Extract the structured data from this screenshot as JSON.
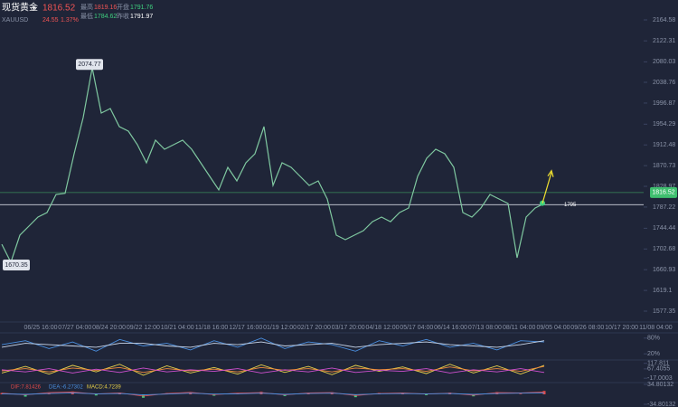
{
  "header": {
    "name": "现货黄金",
    "price": "1816.52",
    "symbol": "XAUUSD",
    "change": "24.55",
    "change_pct": "1.37%",
    "high_label": "最高",
    "high": "1819.16",
    "open_label": "开盘",
    "open": "1791.76",
    "low_label": "最低",
    "low": "1784.62",
    "prev_label": "昨收",
    "prev": "1791.97"
  },
  "chart_data": [
    {
      "type": "line",
      "color": "#7fc8a0",
      "ylim": [
        1577.35,
        2164.58
      ],
      "yticks": [
        2164.58,
        2122.31,
        2080.03,
        2038.76,
        1996.87,
        1954.29,
        1912.48,
        1870.73,
        1828.97,
        1787.22,
        1744.44,
        1702.68,
        1660.93,
        1619.1,
        1577.35
      ],
      "time_labels": [
        "06/25 16:00",
        "07/27 04:00",
        "08/24 20:00",
        "09/22 12:00",
        "10/21 04:00",
        "11/18 16:00",
        "12/17 16:00",
        "01/19 12:00",
        "02/17 20:00",
        "03/17 20:00",
        "04/18 12:00",
        "05/17 04:00",
        "06/14 16:00",
        "07/13 08:00",
        "08/11 04:00",
        "09/05 04:00",
        "09/26 08:00",
        "10/17 20:00",
        "11/08 04:00"
      ],
      "values": [
        1712.2,
        1675.8,
        1730.5,
        1748.7,
        1767.0,
        1776.1,
        1812.6,
        1815.0,
        1894.6,
        1967.6,
        2067.9,
        1976.7,
        1985.8,
        1949.4,
        1940.2,
        1912.9,
        1876.4,
        1922.0,
        1903.8,
        1912.9,
        1922.0,
        1903.8,
        1876.4,
        1849.0,
        1821.7,
        1867.3,
        1839.9,
        1876.4,
        1894.6,
        1949.4,
        1830.8,
        1876.4,
        1867.3,
        1849.0,
        1830.8,
        1839.9,
        1803.4,
        1730.5,
        1721.4,
        1730.5,
        1739.6,
        1757.8,
        1767.0,
        1757.8,
        1776.1,
        1785.2,
        1849.0,
        1885.5,
        1903.8,
        1894.6,
        1867.3,
        1776.1,
        1767.0,
        1785.2,
        1812.6,
        1803.4,
        1794.3,
        1684.9,
        1767.0,
        1785.2,
        1794.3
      ],
      "high_mark": 2074.77,
      "low_mark": 1670.35,
      "last": 1816.52,
      "prev_close": 1791.97,
      "marker": 1795
    },
    {
      "type": "oscillator",
      "ylim": [
        0,
        100
      ],
      "yticks": [
        {
          "value": 80,
          "label": "80%"
        },
        {
          "value": 20,
          "label": "20%"
        }
      ],
      "series": [
        {
          "color": "#4a8fe0",
          "values": [
            55,
            70,
            40,
            65,
            30,
            75,
            50,
            60,
            35,
            70,
            45,
            80,
            40,
            65,
            55,
            30,
            70,
            50,
            75,
            45,
            60,
            35,
            70,
            65
          ]
        },
        {
          "color": "#c9d6ea",
          "values": [
            45,
            60,
            55,
            50,
            45,
            60,
            60,
            50,
            45,
            60,
            55,
            65,
            50,
            55,
            60,
            45,
            55,
            60,
            65,
            55,
            50,
            45,
            55,
            70
          ]
        }
      ]
    },
    {
      "type": "oscillator",
      "ylim": [
        -40,
        140
      ],
      "yticks": [
        117.811,
        67.4055,
        -17.0003
      ],
      "series": [
        {
          "color": "#e8d04a",
          "values": [
            30,
            90,
            20,
            100,
            40,
            110,
            10,
            95,
            30,
            80,
            20,
            105,
            35,
            90,
            15,
            100,
            45,
            85,
            25,
            110,
            30,
            95,
            20,
            100
          ]
        },
        {
          "color": "#f08a3c",
          "values": [
            50,
            70,
            40,
            75,
            55,
            80,
            35,
            70,
            50,
            65,
            40,
            80,
            55,
            70,
            40,
            75,
            60,
            70,
            45,
            85,
            50,
            70,
            45,
            90
          ]
        },
        {
          "color": "#d050d0",
          "values": [
            60,
            40,
            70,
            30,
            65,
            35,
            75,
            40,
            60,
            45,
            70,
            30,
            60,
            40,
            75,
            35,
            55,
            45,
            70,
            30,
            60,
            40,
            70,
            35
          ]
        }
      ]
    },
    {
      "type": "macd",
      "ylim": [
        -38,
        38
      ],
      "yticks": [
        {
          "value": 34.80132,
          "label": "34.80132"
        },
        -34.80132
      ],
      "histogram": [
        5,
        -8,
        3,
        10,
        -4,
        6,
        -12,
        4,
        8,
        -5,
        2,
        9,
        -6,
        3,
        7,
        -10,
        5,
        4,
        -3,
        6,
        -7,
        8,
        2,
        12
      ],
      "series": [
        {
          "name": "DIF:7.81426",
          "color": "#e04a4a",
          "values": [
            4,
            -2,
            6,
            8,
            1,
            5,
            -6,
            3,
            7,
            -1,
            4,
            6,
            -2,
            5,
            6,
            -4,
            3,
            5,
            1,
            4,
            -3,
            6,
            5,
            8
          ]
        },
        {
          "name": "DEA:-6.27302",
          "color": "#4a8fe0",
          "values": [
            2,
            0,
            3,
            5,
            2,
            3,
            -2,
            1,
            4,
            1,
            2,
            4,
            0,
            3,
            4,
            -1,
            2,
            3,
            2,
            3,
            0,
            3,
            4,
            5
          ]
        },
        {
          "name": "MACD:4.7239",
          "color": "#e8d04a",
          "values": []
        }
      ]
    }
  ]
}
